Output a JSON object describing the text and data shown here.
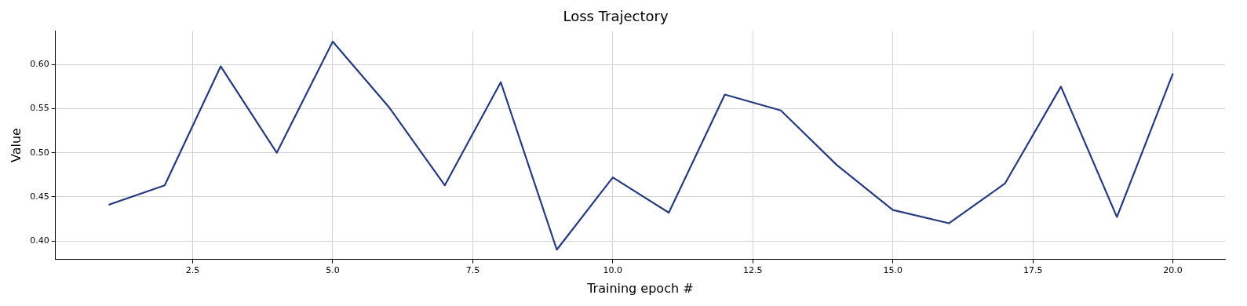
{
  "chart_data": {
    "type": "line",
    "title": "Loss Trajectory",
    "xlabel": "Training epoch #",
    "ylabel": "Value",
    "x": [
      1,
      2,
      3,
      4,
      5,
      6,
      7,
      8,
      9,
      10,
      11,
      12,
      13,
      14,
      15,
      16,
      17,
      18,
      19,
      20
    ],
    "series": [
      {
        "color": "#253a7f",
        "values": [
          0.441,
          0.463,
          0.598,
          0.5,
          0.626,
          0.552,
          0.463,
          0.58,
          0.39,
          0.472,
          0.432,
          0.566,
          0.548,
          0.486,
          0.435,
          0.42,
          0.465,
          0.575,
          0.427,
          0.59
        ]
      }
    ],
    "xlim": [
      0.05,
      20.93
    ],
    "ylim": [
      0.379,
      0.638
    ],
    "xticks": [
      {
        "value": 2.5,
        "label": "2.5"
      },
      {
        "value": 5,
        "label": "5.0"
      },
      {
        "value": 7.5,
        "label": "7.5"
      },
      {
        "value": 10,
        "label": "10.0"
      },
      {
        "value": 12.5,
        "label": "12.5"
      },
      {
        "value": 15,
        "label": "15.0"
      },
      {
        "value": 17.5,
        "label": "17.5"
      },
      {
        "value": 20,
        "label": "20.0"
      }
    ],
    "yticks": [
      {
        "value": 0.4,
        "label": "0.40"
      },
      {
        "value": 0.45,
        "label": "0.45"
      },
      {
        "value": 0.5,
        "label": "0.50"
      },
      {
        "value": 0.55,
        "label": "0.55"
      },
      {
        "value": 0.6,
        "label": "0.60"
      }
    ],
    "grid": true,
    "legend": false,
    "marker": "none",
    "line_style": "solid"
  }
}
